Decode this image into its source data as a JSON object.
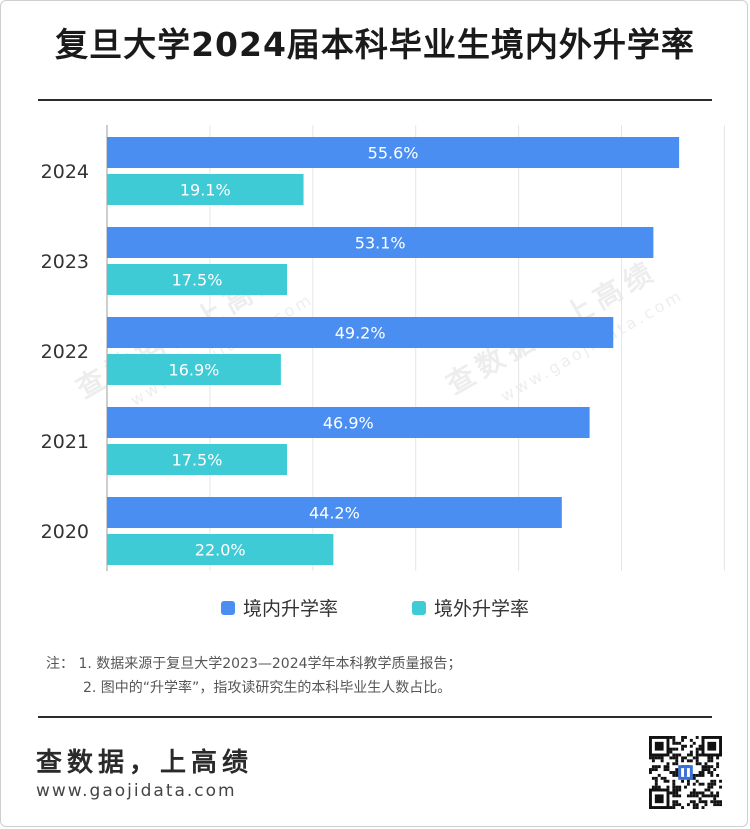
{
  "title": "复旦大学2024届本科毕业生境内外升学率",
  "chart_data": {
    "type": "bar",
    "orientation": "horizontal",
    "categories": [
      "2024",
      "2023",
      "2022",
      "2021",
      "2020"
    ],
    "series": [
      {
        "name": "境内升学率",
        "color": "#4b8ef1",
        "values": [
          55.6,
          53.1,
          49.2,
          46.9,
          44.2
        ],
        "labels": [
          "55.6%",
          "53.1%",
          "49.2%",
          "46.9%",
          "44.2%"
        ]
      },
      {
        "name": "境外升学率",
        "color": "#3ecbd6",
        "values": [
          19.1,
          17.5,
          16.9,
          17.5,
          22.0
        ],
        "labels": [
          "19.1%",
          "17.5%",
          "16.9%",
          "17.5%",
          "22.0%"
        ]
      }
    ],
    "xlim": [
      0,
      60
    ],
    "grid": true,
    "legend_position": "bottom"
  },
  "notes": {
    "line1": "注：  1. 数据来源于复旦大学2023—2024学年本科教学质量报告；",
    "line2": "2. 图中的“升学率”，指攻读研究生的本科毕业生人数占比。"
  },
  "watermark": {
    "text": "查数据，上高绩",
    "url": "www.gaojidata.com"
  },
  "footer": {
    "brand": "查数据，上高绩",
    "url": "www.gaojidata.com",
    "qr_icon": "qr-code-icon"
  }
}
